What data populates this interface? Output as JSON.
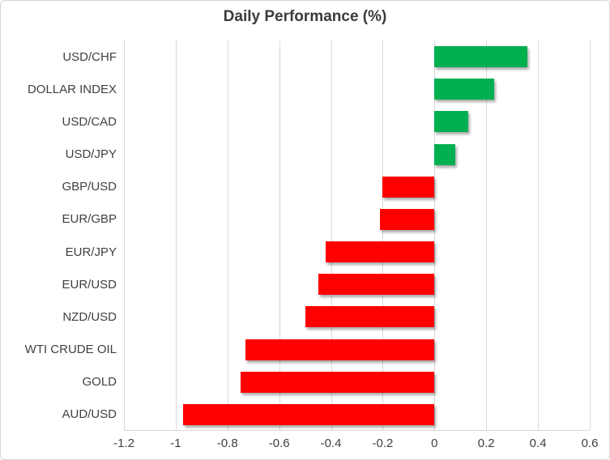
{
  "chart_data": {
    "type": "bar",
    "orientation": "horizontal",
    "title": "Daily Performance (%)",
    "categories": [
      "USD/CHF",
      "DOLLAR INDEX",
      "USD/CAD",
      "USD/JPY",
      "GBP/USD",
      "EUR/GBP",
      "EUR/JPY",
      "EUR/USD",
      "NZD/USD",
      "WTI CRUDE OIL",
      "GOLD",
      "AUD/USD"
    ],
    "values": [
      0.36,
      0.23,
      0.13,
      0.08,
      -0.2,
      -0.21,
      -0.42,
      -0.45,
      -0.5,
      -0.73,
      -0.75,
      -0.97
    ],
    "xlabel": "",
    "ylabel": "",
    "xlim": [
      -1.2,
      0.6
    ],
    "xticks": [
      {
        "value": -1.2,
        "label": "-1.2"
      },
      {
        "value": -1.0,
        "label": "-1"
      },
      {
        "value": -0.8,
        "label": "-0.8"
      },
      {
        "value": -0.6,
        "label": "-0.6"
      },
      {
        "value": -0.4,
        "label": "-0.4"
      },
      {
        "value": -0.2,
        "label": "-0.2"
      },
      {
        "value": 0.0,
        "label": "0"
      },
      {
        "value": 0.2,
        "label": "0.2"
      },
      {
        "value": 0.4,
        "label": "0.4"
      },
      {
        "value": 0.6,
        "label": "0.6"
      }
    ],
    "grid": true,
    "legend": false,
    "colors": {
      "positive_bar": "#00AF50",
      "negative_bar": "#FF0000",
      "gridline": "#D9D9D9",
      "axis_line": "#D9D9D9",
      "title_text": "#3B3B3B",
      "label_text": "#404040",
      "background": "#FFFFFF",
      "frame_border": "#D7D7D7"
    }
  }
}
